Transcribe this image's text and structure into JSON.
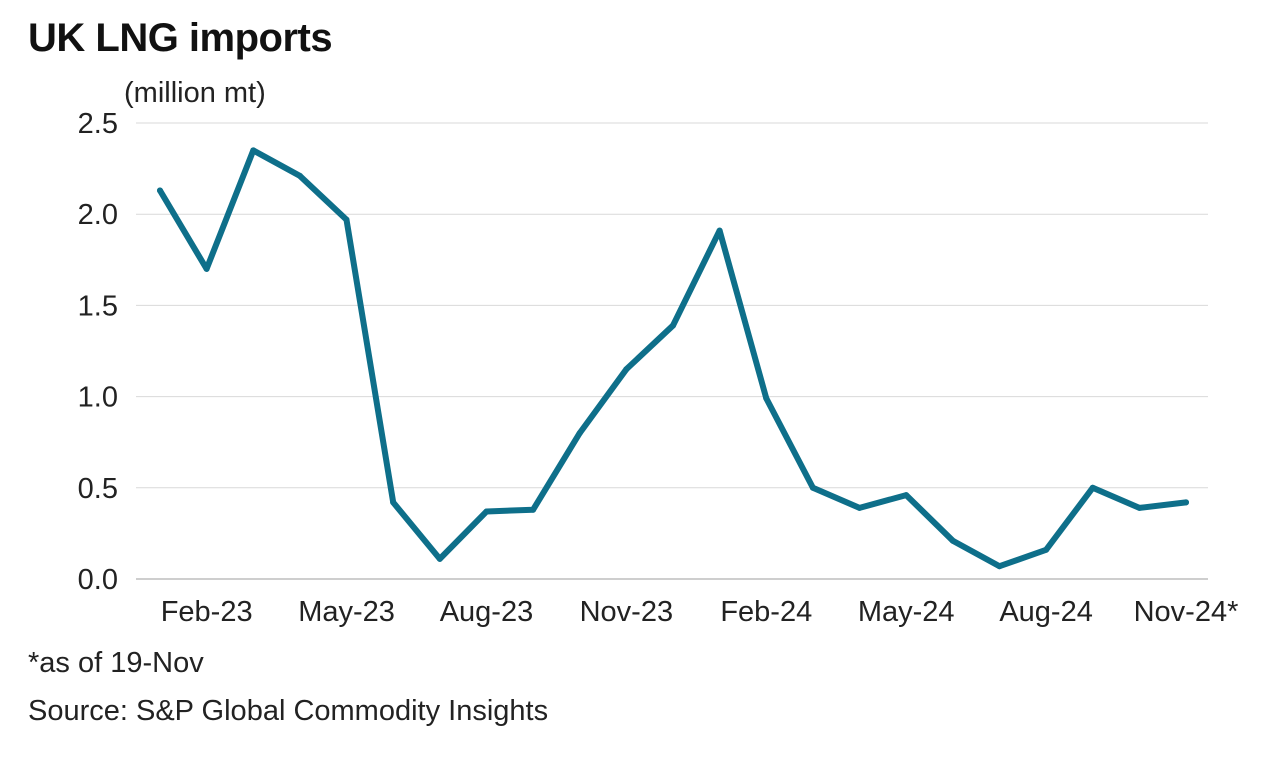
{
  "chart_data": {
    "type": "line",
    "title": "UK LNG imports",
    "ylabel": "(million mt)",
    "xlabel": "",
    "x": [
      "Jan-23",
      "Feb-23",
      "Mar-23",
      "Apr-23",
      "May-23",
      "Jun-23",
      "Jul-23",
      "Aug-23",
      "Sep-23",
      "Oct-23",
      "Nov-23",
      "Dec-23",
      "Jan-24",
      "Feb-24",
      "Mar-24",
      "Apr-24",
      "May-24",
      "Jun-24",
      "Jul-24",
      "Aug-24",
      "Sep-24",
      "Oct-24",
      "Nov-24*"
    ],
    "series": [
      {
        "values": [
          2.13,
          1.7,
          2.35,
          2.21,
          1.97,
          0.42,
          0.11,
          0.37,
          0.38,
          0.8,
          1.15,
          1.39,
          1.91,
          0.99,
          0.5,
          0.39,
          0.46,
          0.21,
          0.07,
          0.16,
          0.5,
          0.39,
          0.42
        ],
        "color": "#0E6F8A"
      }
    ],
    "x_tick_labels": [
      "Feb-23",
      "May-23",
      "Aug-23",
      "Nov-23",
      "Feb-24",
      "May-24",
      "Aug-24",
      "Nov-24*"
    ],
    "y_ticks": [
      "0.0",
      "0.5",
      "1.0",
      "1.5",
      "2.0",
      "2.5"
    ],
    "ylim": [
      0,
      2.5
    ],
    "grid": true,
    "legend": "none"
  },
  "footnote": "*as of 19-Nov",
  "source": "Source: S&P Global Commodity Insights",
  "colors": {
    "line": "#0E6F8A",
    "grid": "#d9d9d9",
    "axis": "#bdbdbd"
  }
}
